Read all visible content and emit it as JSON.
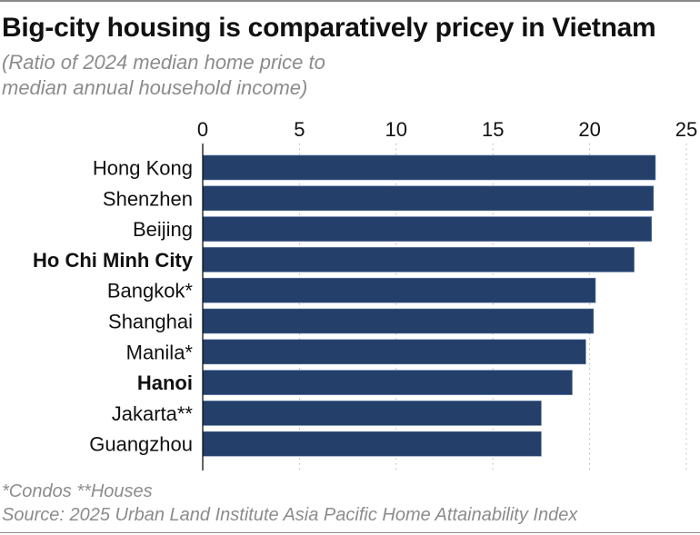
{
  "chart_data": {
    "type": "bar",
    "orientation": "horizontal",
    "title": "Big-city housing is comparatively pricey in Vietnam",
    "subtitle_lines": [
      "(Ratio of 2024 median home price to",
      "median annual household income)"
    ],
    "categories": [
      "Hong Kong",
      "Shenzhen",
      "Beijing",
      "Ho Chi Minh City",
      "Bangkok*",
      "Shanghai",
      "Manila*",
      "Hanoi",
      "Jakarta**",
      "Guangzhou"
    ],
    "highlighted": [
      "Ho Chi Minh City",
      "Hanoi"
    ],
    "values": [
      23.4,
      23.3,
      23.2,
      22.3,
      20.3,
      20.2,
      19.8,
      19.1,
      17.5,
      17.5
    ],
    "xlim": [
      0,
      25
    ],
    "xticks": [
      0,
      5,
      10,
      15,
      20,
      25
    ],
    "xtick_labels": [
      "0",
      "5",
      "10",
      "15",
      "20",
      "25"
    ],
    "xlabel": "",
    "ylabel": "",
    "grid": "vertical dotted",
    "axis_position": "top",
    "bar_color": "#233f6a",
    "footnotes": [
      "*Condos  **Houses",
      "Source: 2025 Urban Land Institute Asia Pacific Home Attainability Index"
    ]
  }
}
